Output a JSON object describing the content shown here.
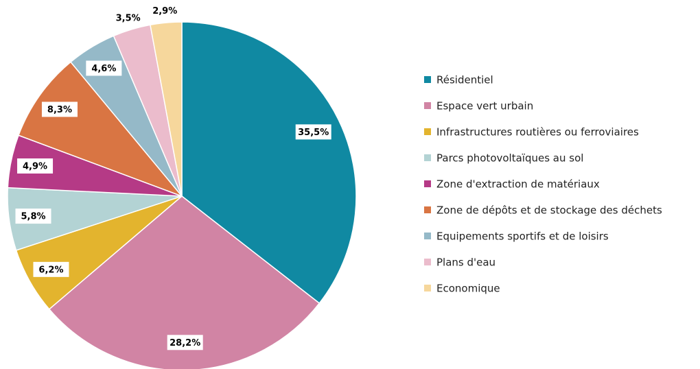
{
  "chart_data": {
    "type": "pie",
    "categories": [
      "Résidentiel",
      "Espace vert urbain",
      "Infrastructures routières ou ferroviaires",
      "Parcs photovoltaïques au sol",
      "Zone d'extraction de matériaux",
      "Zone de dépôts et de stockage des déchets",
      "Equipements sportifs et de loisirs",
      "Plans d'eau",
      "Economique"
    ],
    "values": [
      35.5,
      28.2,
      6.2,
      5.8,
      4.9,
      8.3,
      4.6,
      3.5,
      2.9
    ],
    "value_labels": [
      "35,5%",
      "28,2%",
      "6,2%",
      "5,8%",
      "4,9%",
      "8,3%",
      "4,6%",
      "3,5%",
      "2,9%"
    ],
    "colors": [
      "#1089a2",
      "#d184a4",
      "#e3b42e",
      "#b3d3d4",
      "#b53a86",
      "#d97543",
      "#95b9c8",
      "#ebbccc",
      "#f6d79c"
    ],
    "legend": "right"
  }
}
